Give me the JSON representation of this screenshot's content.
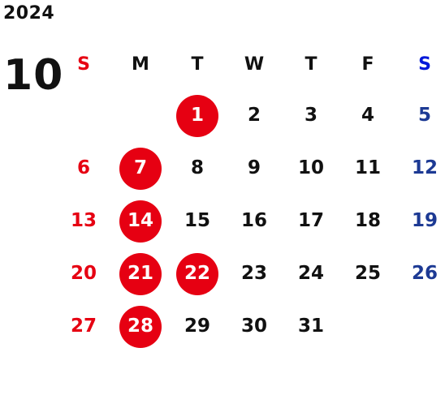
{
  "year": "2024",
  "month": "10",
  "colors": {
    "sunday": "#e60012",
    "saturday": "#1d3a94",
    "saturday_header": "#0018d9",
    "highlight": "#e60012",
    "text": "#111111"
  },
  "weekdays": [
    "S",
    "M",
    "T",
    "W",
    "T",
    "F",
    "S"
  ],
  "weeks": [
    [
      "",
      "",
      "1",
      "2",
      "3",
      "4",
      "5"
    ],
    [
      "6",
      "7",
      "8",
      "9",
      "10",
      "11",
      "12"
    ],
    [
      "13",
      "14",
      "15",
      "16",
      "17",
      "18",
      "19"
    ],
    [
      "20",
      "21",
      "22",
      "23",
      "24",
      "25",
      "26"
    ],
    [
      "27",
      "28",
      "29",
      "30",
      "31",
      "",
      ""
    ]
  ],
  "highlighted_days": [
    "1",
    "7",
    "14",
    "21",
    "22",
    "28"
  ]
}
